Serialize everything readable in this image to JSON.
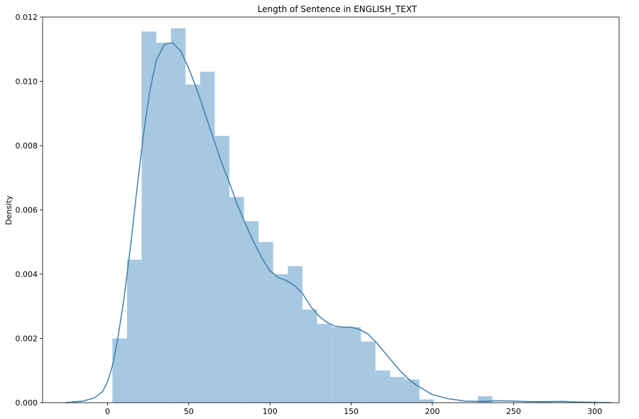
{
  "chart_data": {
    "type": "bar",
    "title": "Length of Sentence in ENGLISH_TEXT",
    "xlabel": "",
    "ylabel": "Density",
    "xlim": [
      -40,
      315
    ],
    "ylim": [
      0,
      0.012
    ],
    "x_ticks": [
      0,
      50,
      100,
      150,
      200,
      250,
      300
    ],
    "y_ticks": [
      0.0,
      0.002,
      0.004,
      0.006,
      0.008,
      0.01,
      0.012
    ],
    "y_tick_format": 3,
    "grid": false,
    "legend": "none",
    "colors": {
      "bar": "#a6c8e0",
      "kde": "#3e7fab",
      "axis": "#000000"
    },
    "histogram": {
      "bin_width": 9,
      "bin_starts": [
        3,
        12,
        21,
        30,
        39,
        48,
        57,
        66,
        75,
        84,
        93,
        102,
        111,
        120,
        129,
        138,
        147,
        156,
        165,
        174,
        183,
        192,
        201,
        210,
        219,
        228,
        237,
        246,
        255,
        264,
        273,
        282,
        291
      ],
      "densities": [
        0.002,
        0.00445,
        0.01155,
        0.0112,
        0.01165,
        0.0099,
        0.0103,
        0.0083,
        0.0064,
        0.00565,
        0.005,
        0.004,
        0.00425,
        0.0029,
        0.00245,
        0.00235,
        0.00235,
        0.0019,
        0.001,
        0.0008,
        0.00072,
        0.0001,
        0.0,
        0.0,
        0.0,
        0.0002,
        0.0,
        0.0,
        0.0,
        5e-05,
        0.0,
        0.0,
        0.0
      ]
    },
    "kde": {
      "x": [
        -26,
        -15,
        -8,
        -3,
        0,
        3,
        6,
        10,
        14,
        18,
        22,
        26,
        30,
        35,
        40,
        45,
        50,
        55,
        60,
        65,
        70,
        75,
        80,
        85,
        90,
        95,
        100,
        105,
        110,
        115,
        120,
        125,
        130,
        135,
        140,
        145,
        150,
        155,
        160,
        165,
        170,
        175,
        180,
        185,
        190,
        195,
        200,
        210,
        220,
        230,
        240,
        250,
        260,
        270,
        280,
        290,
        300,
        310
      ],
      "y": [
        0.0,
        5e-05,
        0.00015,
        0.00035,
        0.00065,
        0.00115,
        0.0019,
        0.0032,
        0.0048,
        0.0066,
        0.0083,
        0.0097,
        0.01065,
        0.01115,
        0.0112,
        0.01095,
        0.0104,
        0.00975,
        0.009,
        0.00825,
        0.0075,
        0.00685,
        0.00615,
        0.00555,
        0.005,
        0.0045,
        0.0041,
        0.0039,
        0.0038,
        0.00365,
        0.0034,
        0.003,
        0.0027,
        0.0025,
        0.00238,
        0.00235,
        0.00235,
        0.00228,
        0.00215,
        0.0019,
        0.0016,
        0.0013,
        0.001,
        0.00075,
        0.00055,
        0.0004,
        0.00025,
        0.00012,
        5e-05,
        4e-05,
        6e-05,
        5e-05,
        3e-05,
        3e-05,
        4e-05,
        2e-05,
        1e-05,
        0.0
      ]
    }
  }
}
